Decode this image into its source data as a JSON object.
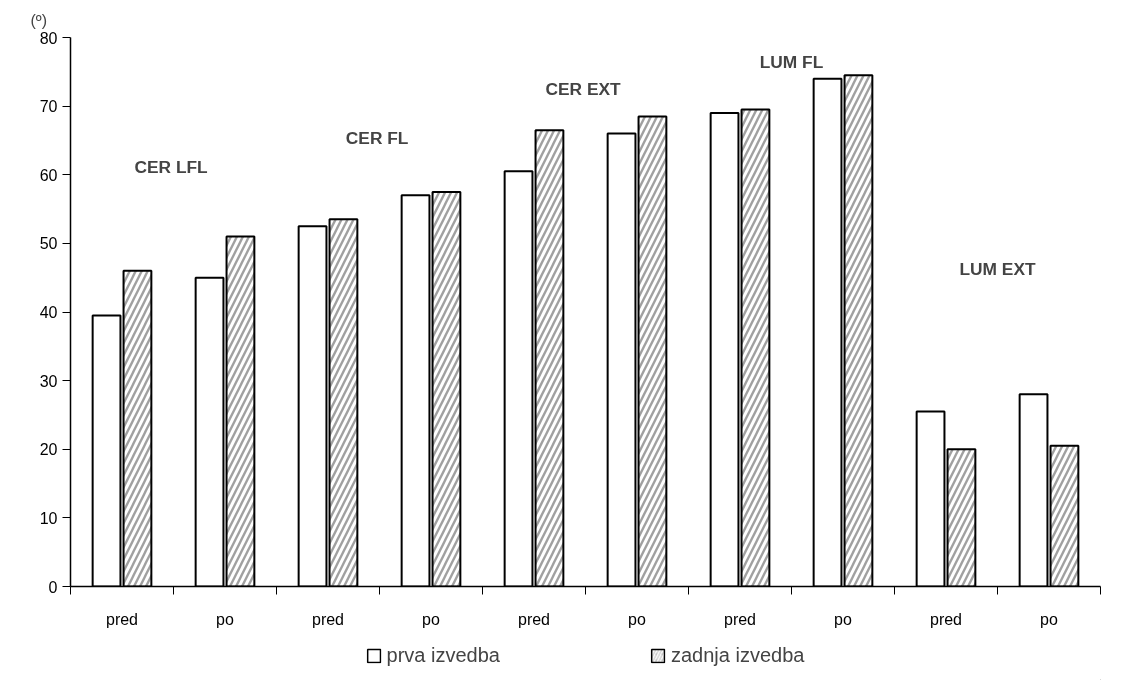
{
  "chart_data": {
    "type": "bar",
    "ylabel": "(º)",
    "categories": [
      "pred",
      "po",
      "pred",
      "po",
      "pred",
      "po",
      "pred",
      "po",
      "pred",
      "po"
    ],
    "series": [
      {
        "name": "prva izvedba",
        "color": "#ffffff",
        "values": [
          39.5,
          45,
          52.5,
          57,
          60.5,
          66,
          69,
          74,
          25.5,
          28
        ]
      },
      {
        "name": "zadnja izvedba",
        "color": "#a0a0a0",
        "values": [
          46,
          51,
          53.5,
          57.5,
          66.5,
          68.5,
          69.5,
          74.5,
          20,
          20.5
        ]
      }
    ],
    "ylim": [
      0,
      80
    ],
    "yticks": [
      0,
      10,
      20,
      30,
      40,
      50,
      60,
      70,
      80
    ],
    "annotations": [
      "CER  LFL",
      "CER  FL",
      "CER  EXT",
      "LUM FL",
      "LUM EXT"
    ],
    "grid": false,
    "legend": "bottom"
  }
}
